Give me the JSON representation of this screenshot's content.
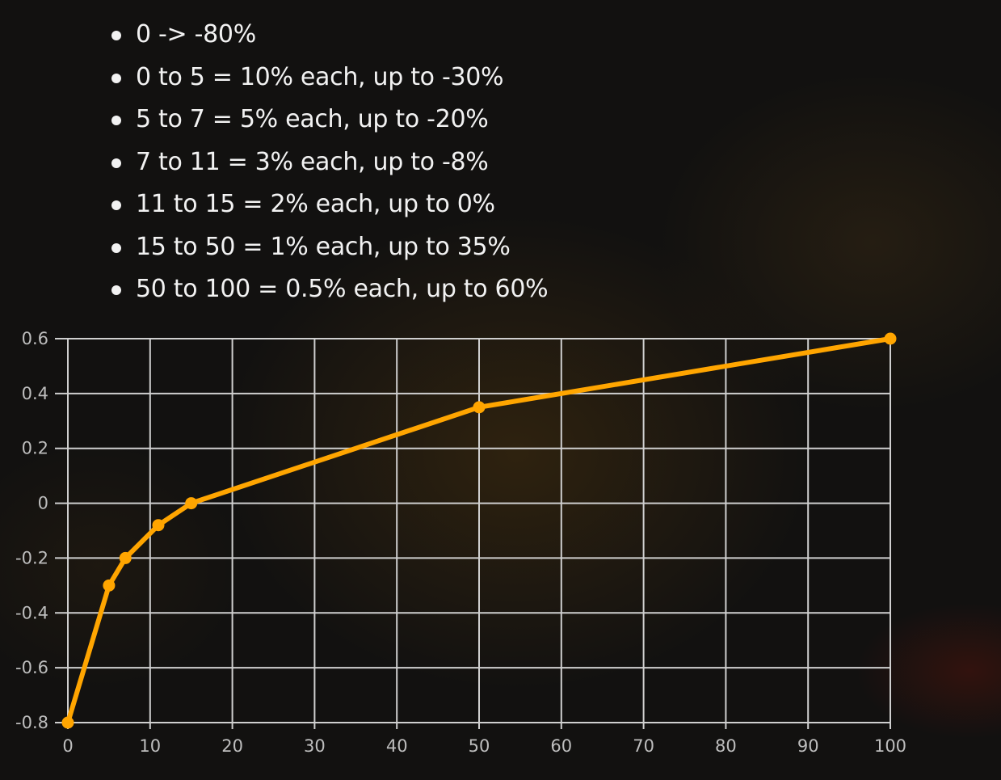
{
  "bullets": [
    "0 -> -80%",
    "0 to 5 = 10% each, up to -30%",
    "5 to 7 = 5% each, up to -20%",
    "7 to 11 = 3% each, up to -8%",
    "11 to 15 = 2% each, up to 0%",
    "15 to 50 = 1% each, up to 35%",
    "50 to 100 = 0.5% each, up to 60%"
  ],
  "colors": {
    "line": "#ffa500",
    "grid": "#cfcfcf",
    "text": "#f2f2f2",
    "tick": "#bdbdbd"
  },
  "chart_data": {
    "type": "line",
    "title": "",
    "xlabel": "",
    "ylabel": "",
    "xlim": [
      0,
      100
    ],
    "ylim": [
      -0.8,
      0.6
    ],
    "xticks": [
      0,
      10,
      20,
      30,
      40,
      50,
      60,
      70,
      80,
      90,
      100
    ],
    "yticks": [
      0.6,
      0.4,
      0.2,
      0,
      -0.2,
      -0.4,
      -0.6,
      -0.8
    ],
    "ytick_labels": [
      "0.6",
      "0.4",
      "0.2",
      "0",
      "-0.2",
      "-0.4",
      "-0.6",
      "-0.8"
    ],
    "grid": true,
    "legend": "none",
    "series": [
      {
        "x": [
          0,
          5,
          7,
          11,
          15,
          50,
          100
        ],
        "y": [
          -0.8,
          -0.3,
          -0.2,
          -0.08,
          0,
          0.35,
          0.6
        ]
      }
    ]
  }
}
